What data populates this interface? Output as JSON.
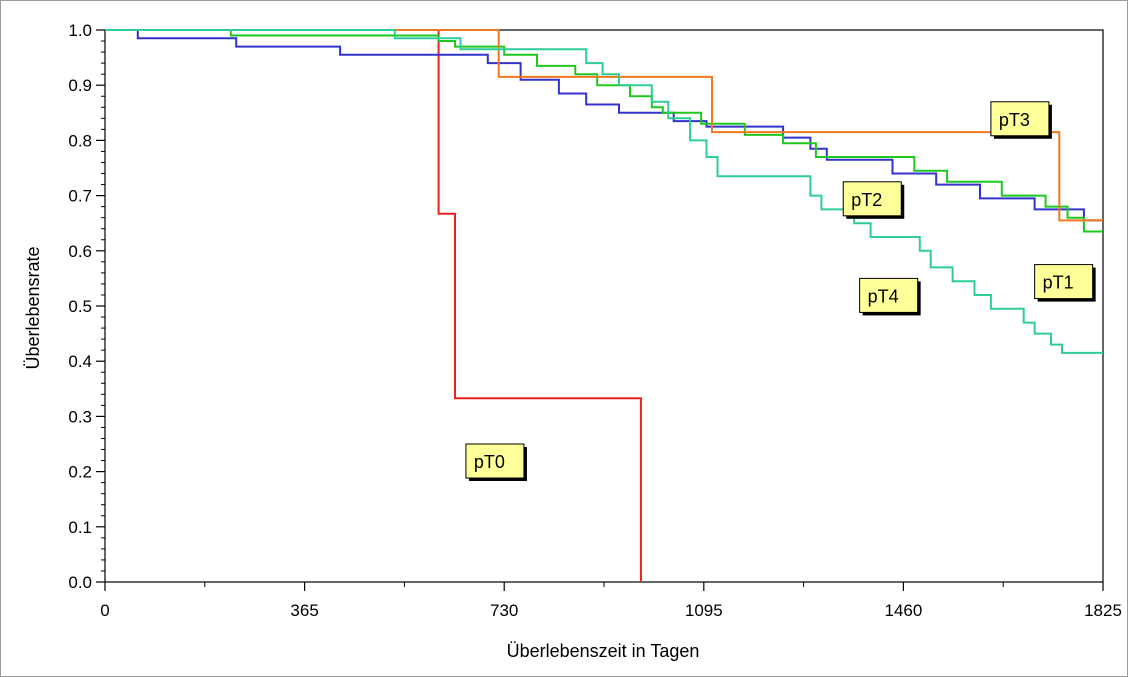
{
  "chart_data": {
    "type": "line",
    "step": true,
    "xlabel": "Überlebenszeit in Tagen",
    "ylabel": "Überlebensrate",
    "xlim": [
      0,
      1825
    ],
    "ylim": [
      0,
      1
    ],
    "x_ticks": [
      "0",
      "365",
      "730",
      "1095",
      "1460",
      "1825"
    ],
    "x_tick_values": [
      0,
      365,
      730,
      1095,
      1460,
      1825
    ],
    "y_ticks": [
      "0.0",
      "0.1",
      "0.2",
      "0.3",
      "0.4",
      "0.5",
      "0.6",
      "0.7",
      "0.8",
      "0.9",
      "1.0"
    ],
    "y_tick_values": [
      0,
      0.1,
      0.2,
      0.3,
      0.4,
      0.5,
      0.6,
      0.7,
      0.8,
      0.9,
      1.0
    ],
    "grid": false,
    "series": [
      {
        "name": "pT0",
        "color": "#e8231c",
        "label_box": {
          "text": "pT0",
          "x": 660,
          "y": 0.25
        },
        "points": [
          [
            0,
            1.0
          ],
          [
            610,
            1.0
          ],
          [
            610,
            0.667
          ],
          [
            640,
            0.667
          ],
          [
            640,
            0.333
          ],
          [
            980,
            0.333
          ],
          [
            980,
            0.0
          ]
        ]
      },
      {
        "name": "pT1",
        "color": "#3333cc",
        "label_box": {
          "text": "pT1",
          "x": 1700,
          "y": 0.575
        },
        "points": [
          [
            0,
            1.0
          ],
          [
            60,
            1.0
          ],
          [
            60,
            0.985
          ],
          [
            240,
            0.985
          ],
          [
            240,
            0.97
          ],
          [
            430,
            0.97
          ],
          [
            430,
            0.955
          ],
          [
            700,
            0.955
          ],
          [
            700,
            0.94
          ],
          [
            760,
            0.94
          ],
          [
            760,
            0.91
          ],
          [
            830,
            0.91
          ],
          [
            830,
            0.885
          ],
          [
            880,
            0.885
          ],
          [
            880,
            0.865
          ],
          [
            940,
            0.865
          ],
          [
            940,
            0.85
          ],
          [
            1040,
            0.85
          ],
          [
            1040,
            0.835
          ],
          [
            1100,
            0.835
          ],
          [
            1100,
            0.825
          ],
          [
            1240,
            0.825
          ],
          [
            1240,
            0.805
          ],
          [
            1290,
            0.805
          ],
          [
            1290,
            0.785
          ],
          [
            1320,
            0.785
          ],
          [
            1320,
            0.765
          ],
          [
            1440,
            0.765
          ],
          [
            1440,
            0.74
          ],
          [
            1520,
            0.74
          ],
          [
            1520,
            0.72
          ],
          [
            1600,
            0.72
          ],
          [
            1600,
            0.695
          ],
          [
            1700,
            0.695
          ],
          [
            1700,
            0.675
          ],
          [
            1790,
            0.675
          ],
          [
            1790,
            0.655
          ],
          [
            1825,
            0.655
          ]
        ]
      },
      {
        "name": "pT2",
        "color": "#1ec81e",
        "label_box": {
          "text": "pT2",
          "x": 1350,
          "y": 0.725
        },
        "points": [
          [
            0,
            1.0
          ],
          [
            230,
            1.0
          ],
          [
            230,
            0.99
          ],
          [
            610,
            0.99
          ],
          [
            610,
            0.98
          ],
          [
            640,
            0.98
          ],
          [
            640,
            0.97
          ],
          [
            730,
            0.97
          ],
          [
            730,
            0.955
          ],
          [
            790,
            0.955
          ],
          [
            790,
            0.935
          ],
          [
            860,
            0.935
          ],
          [
            860,
            0.92
          ],
          [
            900,
            0.92
          ],
          [
            900,
            0.9
          ],
          [
            960,
            0.9
          ],
          [
            960,
            0.88
          ],
          [
            1000,
            0.88
          ],
          [
            1000,
            0.86
          ],
          [
            1020,
            0.86
          ],
          [
            1020,
            0.85
          ],
          [
            1090,
            0.85
          ],
          [
            1090,
            0.83
          ],
          [
            1170,
            0.83
          ],
          [
            1170,
            0.81
          ],
          [
            1240,
            0.81
          ],
          [
            1240,
            0.795
          ],
          [
            1300,
            0.795
          ],
          [
            1300,
            0.77
          ],
          [
            1480,
            0.77
          ],
          [
            1480,
            0.745
          ],
          [
            1540,
            0.745
          ],
          [
            1540,
            0.725
          ],
          [
            1640,
            0.725
          ],
          [
            1640,
            0.7
          ],
          [
            1720,
            0.7
          ],
          [
            1720,
            0.68
          ],
          [
            1760,
            0.68
          ],
          [
            1760,
            0.66
          ],
          [
            1790,
            0.66
          ],
          [
            1790,
            0.635
          ],
          [
            1825,
            0.635
          ]
        ]
      },
      {
        "name": "pT3",
        "color": "#f0781e",
        "label_box": {
          "text": "pT3",
          "x": 1620,
          "y": 0.87
        },
        "points": [
          [
            0,
            1.0
          ],
          [
            720,
            1.0
          ],
          [
            720,
            0.915
          ],
          [
            1110,
            0.915
          ],
          [
            1110,
            0.815
          ],
          [
            1745,
            0.815
          ],
          [
            1745,
            0.655
          ],
          [
            1825,
            0.655
          ]
        ]
      },
      {
        "name": "pT4",
        "color": "#2ecc9a",
        "label_box": {
          "text": "pT4",
          "x": 1380,
          "y": 0.55
        },
        "points": [
          [
            0,
            1.0
          ],
          [
            530,
            1.0
          ],
          [
            530,
            0.985
          ],
          [
            650,
            0.985
          ],
          [
            650,
            0.965
          ],
          [
            880,
            0.965
          ],
          [
            880,
            0.94
          ],
          [
            910,
            0.94
          ],
          [
            910,
            0.92
          ],
          [
            940,
            0.92
          ],
          [
            940,
            0.9
          ],
          [
            1000,
            0.9
          ],
          [
            1000,
            0.87
          ],
          [
            1030,
            0.87
          ],
          [
            1030,
            0.84
          ],
          [
            1070,
            0.84
          ],
          [
            1070,
            0.8
          ],
          [
            1100,
            0.8
          ],
          [
            1100,
            0.77
          ],
          [
            1120,
            0.77
          ],
          [
            1120,
            0.735
          ],
          [
            1290,
            0.735
          ],
          [
            1290,
            0.7
          ],
          [
            1310,
            0.7
          ],
          [
            1310,
            0.675
          ],
          [
            1370,
            0.675
          ],
          [
            1370,
            0.65
          ],
          [
            1400,
            0.65
          ],
          [
            1400,
            0.625
          ],
          [
            1490,
            0.625
          ],
          [
            1490,
            0.6
          ],
          [
            1510,
            0.6
          ],
          [
            1510,
            0.57
          ],
          [
            1550,
            0.57
          ],
          [
            1550,
            0.545
          ],
          [
            1590,
            0.545
          ],
          [
            1590,
            0.52
          ],
          [
            1620,
            0.52
          ],
          [
            1620,
            0.495
          ],
          [
            1680,
            0.495
          ],
          [
            1680,
            0.47
          ],
          [
            1700,
            0.47
          ],
          [
            1700,
            0.45
          ],
          [
            1730,
            0.45
          ],
          [
            1730,
            0.43
          ],
          [
            1750,
            0.43
          ],
          [
            1750,
            0.415
          ],
          [
            1825,
            0.415
          ]
        ]
      }
    ]
  }
}
